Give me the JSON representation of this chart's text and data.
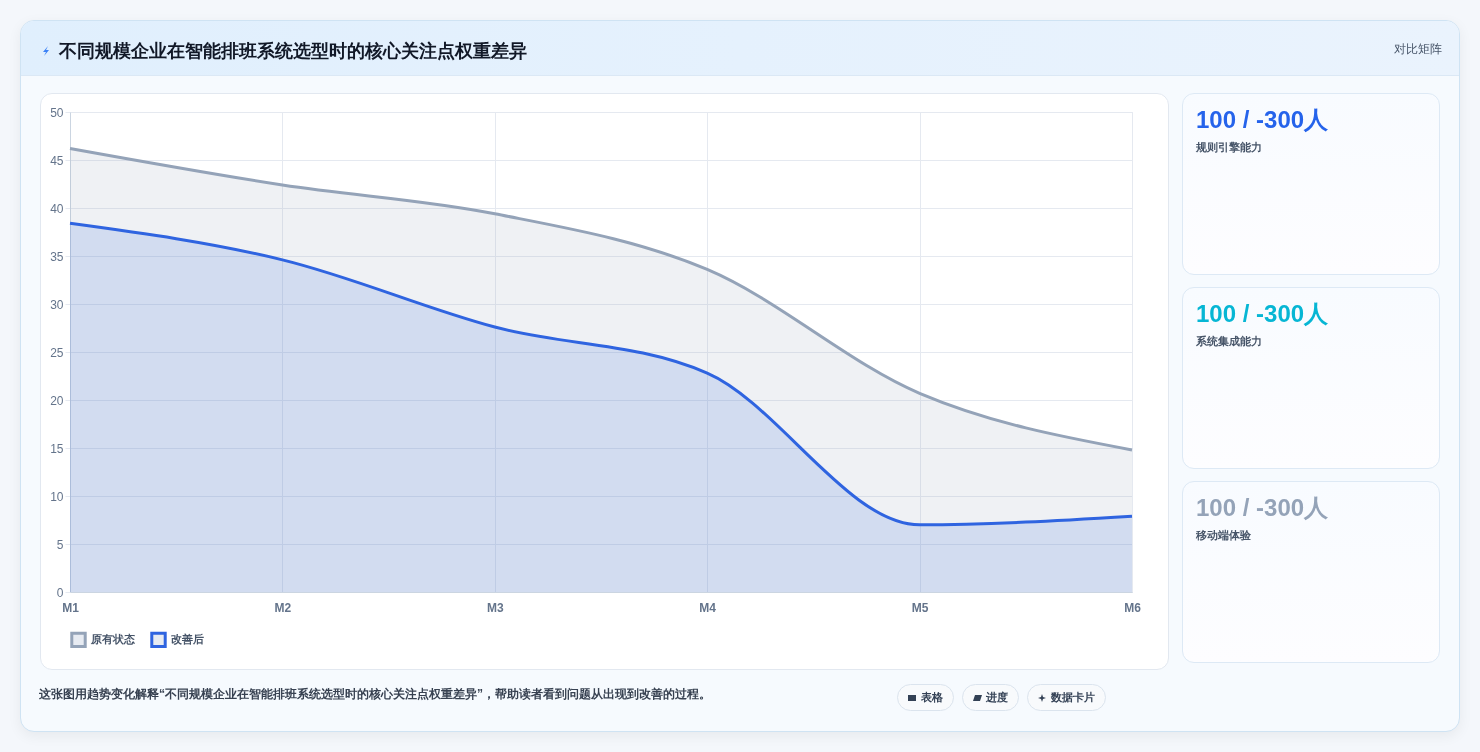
{
  "chart_data": [
    {
      "type": "area",
      "title": "不同规模企业在智能排班系统选型时的核心关注点权重差异",
      "categories": [
        "M1",
        "M2",
        "M3",
        "M4",
        "M5",
        "M6"
      ],
      "series": [
        {
          "name": "原有状态",
          "color": "#94a3b8",
          "values": [
            46.2,
            42.4,
            39.4,
            33.6,
            20.7,
            14.8
          ]
        },
        {
          "name": "改善后",
          "color": "#2f64e0",
          "values": [
            38.4,
            34.6,
            27.6,
            22.8,
            7,
            7.9
          ]
        }
      ],
      "ylim": [
        0,
        50
      ],
      "yticks": [
        0,
        5,
        10,
        15,
        20,
        25,
        30,
        35,
        40,
        45,
        50
      ],
      "grid": true,
      "legend": "bottom",
      "line_style": "solid",
      "annotations": [
        "这张图用趋势变化解释“不同规模企业在智能排班系统选型时的核心关注点权重差异”，帮助读者看到问题从出现到改善的过程。",
        "表格",
        "进度",
        "数据卡片"
      ]
    },
    {
      "type": "other",
      "title": "对比矩阵",
      "colors": [
        "#2563eb",
        "#06b6d4",
        "#94a3b8"
      ],
      "annotations": [
        "100 / -300人",
        "规则引擎能力",
        "100 / -300人",
        "系统集成能力",
        "100 / -300人",
        "移动端体验"
      ]
    }
  ]
}
